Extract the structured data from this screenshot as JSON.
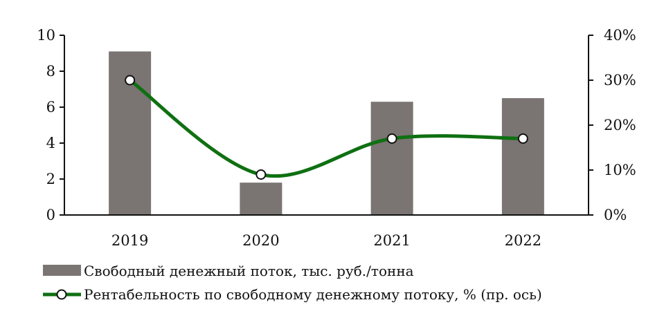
{
  "chart_data": {
    "type": "bar",
    "categories": [
      "2019",
      "2020",
      "2021",
      "2022"
    ],
    "series": [
      {
        "name": "Свободный денежный поток, тыс. руб./тонна",
        "type": "bar",
        "axis": "left",
        "values": [
          9.1,
          1.8,
          6.3,
          6.5
        ],
        "color": "#7a7472"
      },
      {
        "name": "Рентабельность по свободному денежному потоку, % (пр. ось)",
        "type": "line",
        "axis": "right",
        "values": [
          30,
          9,
          17,
          17
        ],
        "color": "#0f7012"
      }
    ],
    "y_left": {
      "ylim": [
        0,
        10
      ],
      "ticks": [
        "0",
        "2",
        "4",
        "6",
        "8",
        "10"
      ]
    },
    "y_right": {
      "ylim": [
        0,
        40
      ],
      "ticks": [
        "0%",
        "10%",
        "20%",
        "30%",
        "40%"
      ]
    },
    "grid": false,
    "legend_position": "bottom"
  }
}
